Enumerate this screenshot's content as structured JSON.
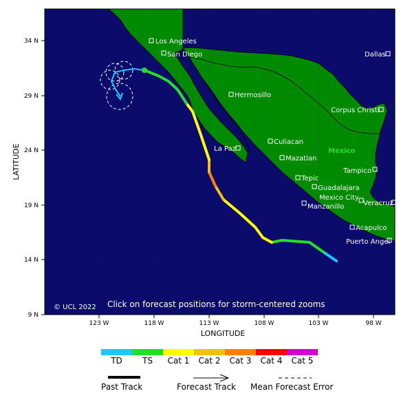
{
  "map": {
    "colors": {
      "ocean": "#0b0b6b",
      "land": "#008a00",
      "border": "#000000",
      "frame": "#000000"
    },
    "copyright": "© UCL 2022",
    "instruction": "Click on forecast positions for storm-centered zooms",
    "country_label": "Mexico",
    "lat_ticks": [
      "34 N",
      "29 N",
      "24 N",
      "19 N",
      "14 N",
      "9 N"
    ],
    "lon_ticks": [
      "123 W",
      "118 W",
      "113 W",
      "108 W",
      "103 W",
      "98 W"
    ],
    "xlabel": "LONGITUDE",
    "ylabel": "LATITUDE",
    "cities": [
      {
        "name": "Los Angeles",
        "key": "los-angeles"
      },
      {
        "name": "San Diego",
        "key": "san-diego"
      },
      {
        "name": "Dallas",
        "key": "dallas"
      },
      {
        "name": "Hermosillo",
        "key": "hermosillo"
      },
      {
        "name": "Corpus Christi",
        "key": "corpus-christi"
      },
      {
        "name": "Culiacan",
        "key": "culiacan"
      },
      {
        "name": "La Paz",
        "key": "la-paz"
      },
      {
        "name": "Mazatlan",
        "key": "mazatlan"
      },
      {
        "name": "Tampico",
        "key": "tampico"
      },
      {
        "name": "Tepic",
        "key": "tepic"
      },
      {
        "name": "Guadalajara",
        "key": "guadalajara"
      },
      {
        "name": "Mexico City",
        "key": "mexico-city"
      },
      {
        "name": "Veracruz",
        "key": "veracruz"
      },
      {
        "name": "Manzanillo",
        "key": "manzanillo"
      },
      {
        "name": "Acapulco",
        "key": "acapulco"
      },
      {
        "name": "Puerto Angel",
        "key": "puerto-angel"
      }
    ],
    "track_colors": {
      "TD": "#1ec8ff",
      "TS": "#22e022",
      "Cat 1": "#ffff00",
      "Cat 2": "#f2c010",
      "Cat 3": "#ff7f00",
      "Cat 4": "#ff0000",
      "Cat 5": "#d000d0"
    }
  },
  "legend": {
    "categories": [
      {
        "label": "TD",
        "color": "#1ec8ff"
      },
      {
        "label": "TS",
        "color": "#22e022"
      },
      {
        "label": "Cat 1",
        "color": "#ffff00"
      },
      {
        "label": "Cat 2",
        "color": "#f2c010"
      },
      {
        "label": "Cat 3",
        "color": "#ff7f00"
      },
      {
        "label": "Cat 4",
        "color": "#ff0000"
      },
      {
        "label": "Cat 5",
        "color": "#d000d0"
      }
    ],
    "past_track": "Past Track",
    "forecast_track": "Forecast Track",
    "mean_error": "Mean Forecast Error"
  }
}
